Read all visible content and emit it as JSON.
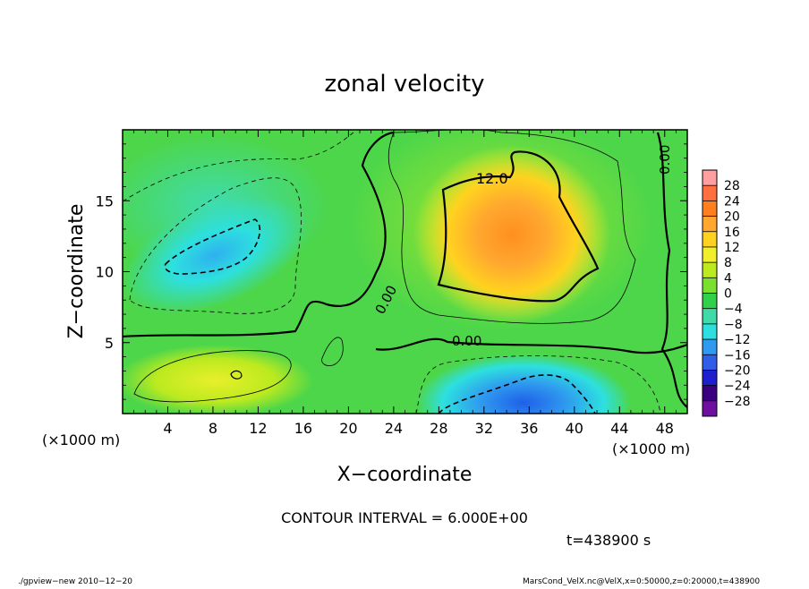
{
  "chart_data": {
    "type": "heatmap",
    "title": "zonal velocity",
    "xlabel": "X−coordinate",
    "ylabel": "Z−coordinate",
    "x_unit_left": "(×1000 m)",
    "x_unit_right": "(×1000 m)",
    "xlim": [
      0,
      50
    ],
    "ylim": [
      0,
      20
    ],
    "x_ticks": [
      4,
      8,
      12,
      16,
      20,
      24,
      28,
      32,
      36,
      40,
      44,
      48
    ],
    "y_ticks": [
      5,
      10,
      15
    ],
    "colorbar_levels": [
      "28",
      "24",
      "20",
      "16",
      "12",
      "8",
      "4",
      "0",
      "−4",
      "−8",
      "−12",
      "−16",
      "−20",
      "−24",
      "−28"
    ],
    "colorbar_colors": [
      "#ff9f9f",
      "#ff6f3f",
      "#ff7f1f",
      "#ffa72f",
      "#ffd21f",
      "#f0f02a",
      "#bcea1f",
      "#7adf2f",
      "#30d04a",
      "#3fdaa8",
      "#2de0df",
      "#2f9aef",
      "#2f5fe9",
      "#1f1fd0",
      "#3a007f",
      "#6f0fa0"
    ],
    "contour_labels": [
      "12.0",
      "0.00",
      "0.00",
      "0.00"
    ],
    "contour_interval_text": "CONTOUR INTERVAL = 6.000E+00",
    "time_text": "t=438900 s",
    "footer_left": "./gpview−new   2010−12−20",
    "footer_right": "MarsCond_VelX.nc@VelX,x=0:50000,z=0:20000,t=438900",
    "features": [
      {
        "x": 10,
        "z": 11.5,
        "value": -9
      },
      {
        "x": 35,
        "z": 12,
        "value": 14
      },
      {
        "x": 36,
        "z": 1,
        "value": -13
      },
      {
        "x": 9,
        "z": 2.5,
        "value": 7
      }
    ]
  }
}
